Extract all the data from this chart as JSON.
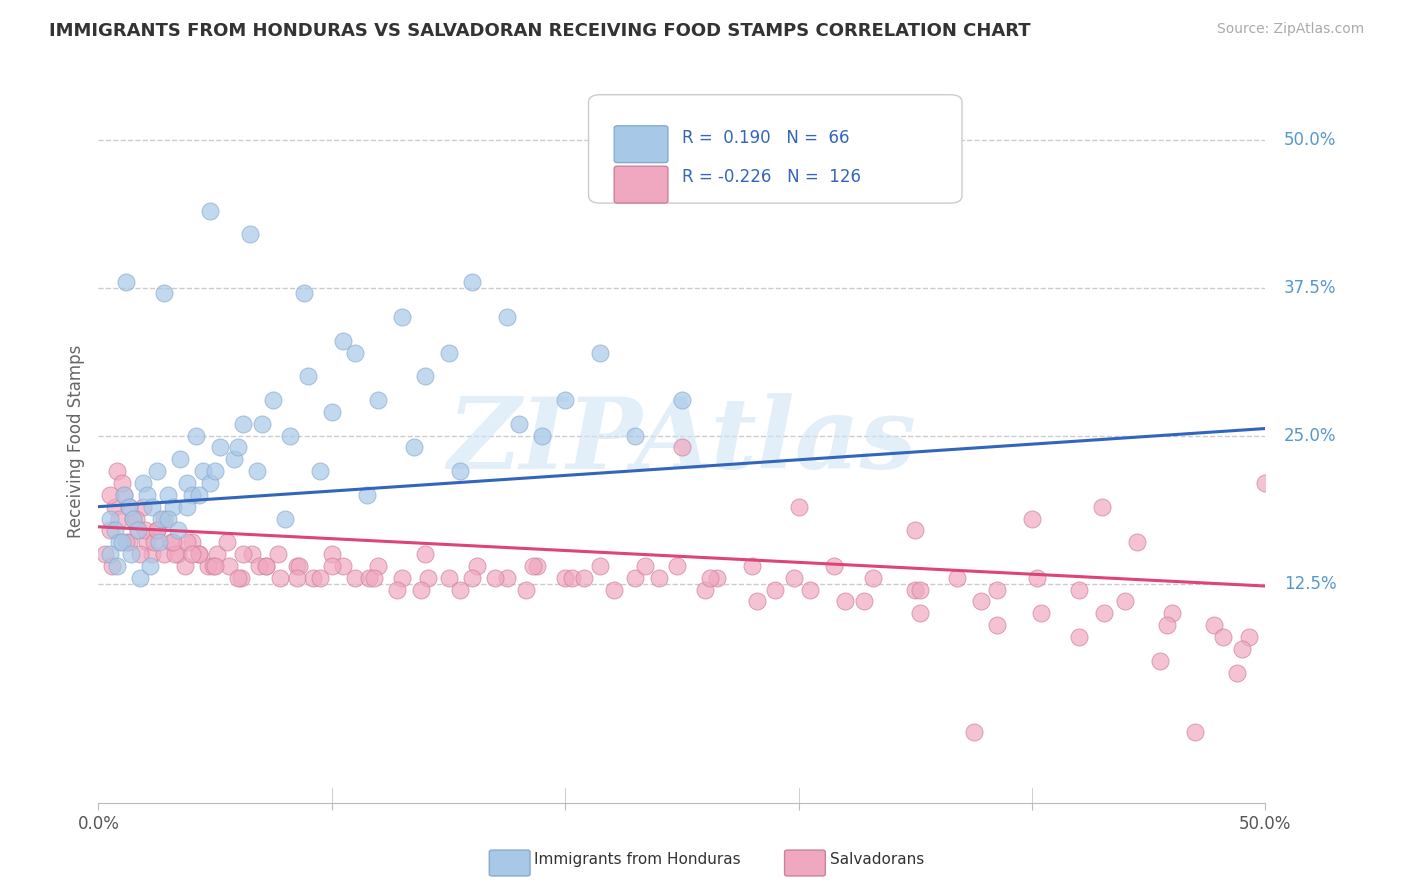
{
  "title": "IMMIGRANTS FROM HONDURAS VS SALVADORAN RECEIVING FOOD STAMPS CORRELATION CHART",
  "source": "Source: ZipAtlas.com",
  "ylabel": "Receiving Food Stamps",
  "xmin": 0.0,
  "xmax": 0.5,
  "ymin": -0.06,
  "ymax": 0.55,
  "blue_R": 0.19,
  "blue_N": 66,
  "pink_R": -0.226,
  "pink_N": 126,
  "blue_color": "#a8c8e8",
  "pink_color": "#f0a8c0",
  "blue_edge": "#88aacc",
  "pink_edge": "#cc8099",
  "trendline_blue": "#3366bb",
  "trendline_pink": "#dd4477",
  "legend_label_blue": "Immigrants from Honduras",
  "legend_label_pink": "Salvadorans",
  "watermark": "ZIPAtlas",
  "watermark_blue": "#c0d8f0",
  "watermark_pink": "#f0c0d0",
  "background_color": "#ffffff",
  "grid_color": "#cccccc",
  "title_color": "#333333",
  "blue_trend_x0": 0.0,
  "blue_trend_y0": 0.19,
  "blue_trend_x1": 0.5,
  "blue_trend_y1": 0.256,
  "pink_trend_x0": 0.0,
  "pink_trend_y0": 0.173,
  "pink_trend_x1": 0.5,
  "pink_trend_y1": 0.123,
  "blue_x": [
    0.005,
    0.007,
    0.009,
    0.011,
    0.013,
    0.015,
    0.017,
    0.019,
    0.021,
    0.023,
    0.025,
    0.027,
    0.03,
    0.032,
    0.035,
    0.038,
    0.04,
    0.042,
    0.045,
    0.048,
    0.052,
    0.058,
    0.062,
    0.068,
    0.075,
    0.082,
    0.09,
    0.1,
    0.11,
    0.12,
    0.13,
    0.14,
    0.15,
    0.16,
    0.175,
    0.19,
    0.2,
    0.215,
    0.23,
    0.25,
    0.005,
    0.008,
    0.01,
    0.014,
    0.018,
    0.022,
    0.026,
    0.03,
    0.034,
    0.038,
    0.043,
    0.05,
    0.06,
    0.07,
    0.08,
    0.095,
    0.115,
    0.135,
    0.155,
    0.18,
    0.012,
    0.028,
    0.048,
    0.065,
    0.088,
    0.105
  ],
  "blue_y": [
    0.18,
    0.17,
    0.16,
    0.2,
    0.19,
    0.18,
    0.17,
    0.21,
    0.2,
    0.19,
    0.22,
    0.18,
    0.2,
    0.19,
    0.23,
    0.21,
    0.2,
    0.25,
    0.22,
    0.21,
    0.24,
    0.23,
    0.26,
    0.22,
    0.28,
    0.25,
    0.3,
    0.27,
    0.32,
    0.28,
    0.35,
    0.3,
    0.32,
    0.38,
    0.35,
    0.25,
    0.28,
    0.32,
    0.25,
    0.28,
    0.15,
    0.14,
    0.16,
    0.15,
    0.13,
    0.14,
    0.16,
    0.18,
    0.17,
    0.19,
    0.2,
    0.22,
    0.24,
    0.26,
    0.18,
    0.22,
    0.2,
    0.24,
    0.22,
    0.26,
    0.38,
    0.37,
    0.44,
    0.42,
    0.37,
    0.33
  ],
  "pink_x": [
    0.005,
    0.007,
    0.009,
    0.011,
    0.013,
    0.015,
    0.017,
    0.019,
    0.021,
    0.023,
    0.025,
    0.028,
    0.031,
    0.034,
    0.037,
    0.04,
    0.043,
    0.047,
    0.051,
    0.056,
    0.061,
    0.066,
    0.072,
    0.078,
    0.085,
    0.092,
    0.1,
    0.11,
    0.12,
    0.13,
    0.14,
    0.15,
    0.162,
    0.175,
    0.188,
    0.2,
    0.215,
    0.23,
    0.248,
    0.265,
    0.28,
    0.298,
    0.315,
    0.332,
    0.35,
    0.368,
    0.385,
    0.402,
    0.42,
    0.44,
    0.46,
    0.478,
    0.493,
    0.005,
    0.008,
    0.01,
    0.013,
    0.016,
    0.02,
    0.024,
    0.028,
    0.033,
    0.038,
    0.043,
    0.049,
    0.055,
    0.062,
    0.069,
    0.077,
    0.086,
    0.095,
    0.105,
    0.116,
    0.128,
    0.141,
    0.155,
    0.17,
    0.186,
    0.203,
    0.221,
    0.24,
    0.26,
    0.282,
    0.305,
    0.328,
    0.352,
    0.378,
    0.404,
    0.431,
    0.458,
    0.482,
    0.003,
    0.006,
    0.012,
    0.018,
    0.025,
    0.032,
    0.04,
    0.05,
    0.06,
    0.072,
    0.085,
    0.1,
    0.118,
    0.138,
    0.16,
    0.183,
    0.208,
    0.234,
    0.262,
    0.29,
    0.32,
    0.352,
    0.385,
    0.42,
    0.455,
    0.488,
    0.35,
    0.4,
    0.445,
    0.49,
    0.3,
    0.43,
    0.375,
    0.47,
    0.5,
    0.25
  ],
  "pink_y": [
    0.17,
    0.19,
    0.18,
    0.2,
    0.16,
    0.18,
    0.17,
    0.19,
    0.16,
    0.15,
    0.17,
    0.15,
    0.16,
    0.15,
    0.14,
    0.16,
    0.15,
    0.14,
    0.15,
    0.14,
    0.13,
    0.15,
    0.14,
    0.13,
    0.14,
    0.13,
    0.15,
    0.13,
    0.14,
    0.13,
    0.15,
    0.13,
    0.14,
    0.13,
    0.14,
    0.13,
    0.14,
    0.13,
    0.14,
    0.13,
    0.14,
    0.13,
    0.14,
    0.13,
    0.12,
    0.13,
    0.12,
    0.13,
    0.12,
    0.11,
    0.1,
    0.09,
    0.08,
    0.2,
    0.22,
    0.21,
    0.19,
    0.18,
    0.17,
    0.16,
    0.18,
    0.15,
    0.16,
    0.15,
    0.14,
    0.16,
    0.15,
    0.14,
    0.15,
    0.14,
    0.13,
    0.14,
    0.13,
    0.12,
    0.13,
    0.12,
    0.13,
    0.14,
    0.13,
    0.12,
    0.13,
    0.12,
    0.11,
    0.12,
    0.11,
    0.12,
    0.11,
    0.1,
    0.1,
    0.09,
    0.08,
    0.15,
    0.14,
    0.16,
    0.15,
    0.17,
    0.16,
    0.15,
    0.14,
    0.13,
    0.14,
    0.13,
    0.14,
    0.13,
    0.12,
    0.13,
    0.12,
    0.13,
    0.14,
    0.13,
    0.12,
    0.11,
    0.1,
    0.09,
    0.08,
    0.06,
    0.05,
    0.17,
    0.18,
    0.16,
    0.07,
    0.19,
    0.19,
    0.0,
    0.0,
    0.21,
    0.24
  ]
}
